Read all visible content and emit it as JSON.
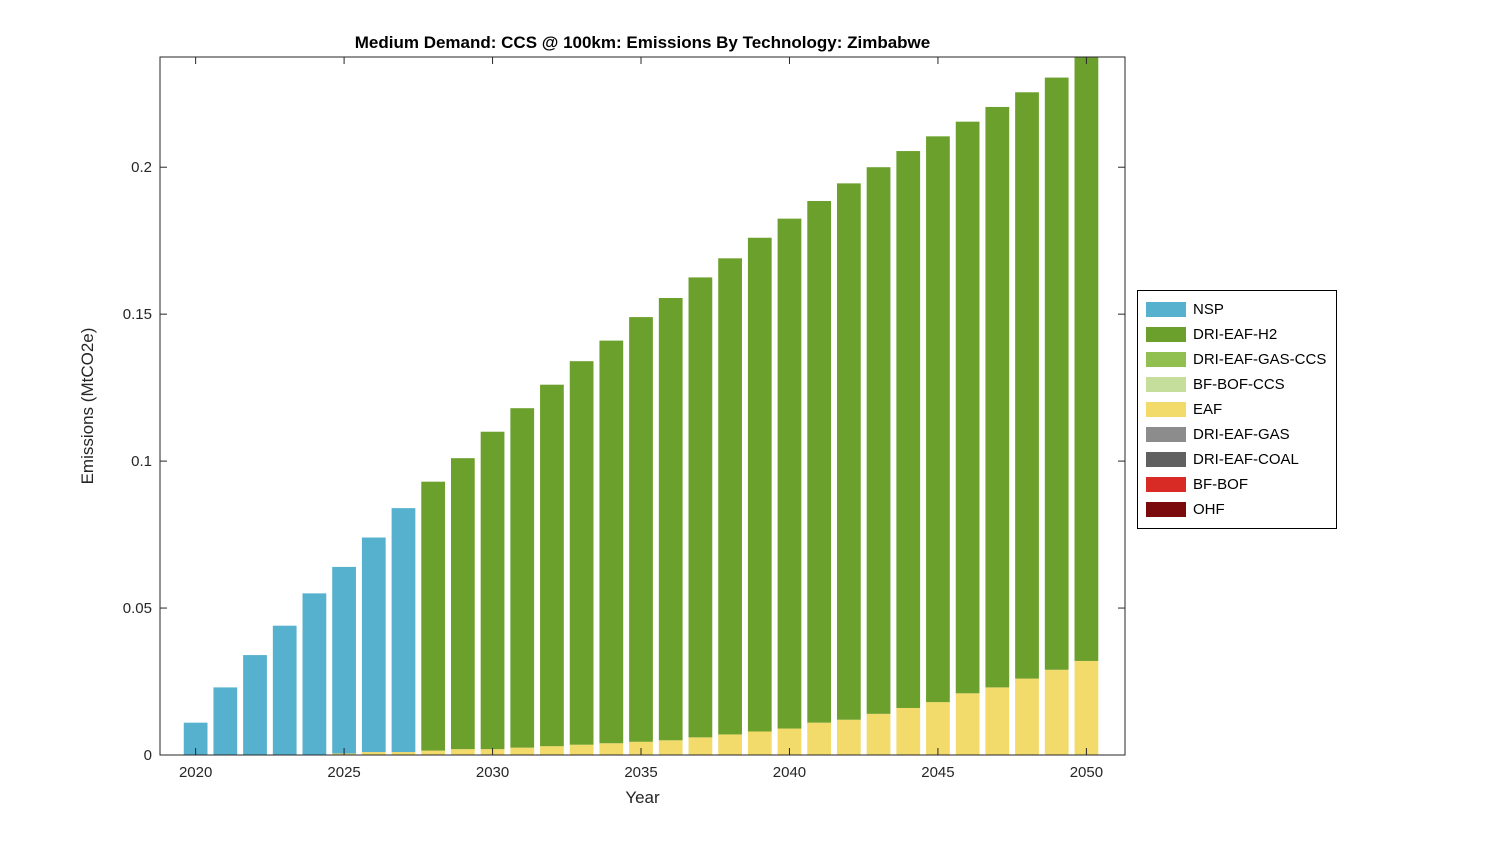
{
  "chart_data": {
    "type": "bar",
    "stacked": true,
    "title": "Medium Demand: CCS @ 100km: Emissions By Technology: Zimbabwe",
    "xlabel": "Year",
    "ylabel": "Emissions (MtCO2e)",
    "x": [
      2020,
      2021,
      2022,
      2023,
      2024,
      2025,
      2026,
      2027,
      2028,
      2029,
      2030,
      2031,
      2032,
      2033,
      2034,
      2035,
      2036,
      2037,
      2038,
      2039,
      2040,
      2041,
      2042,
      2043,
      2044,
      2045,
      2046,
      2047,
      2048,
      2049,
      2050
    ],
    "xlim": [
      2018.8,
      2051.3
    ],
    "ylim": [
      0,
      0.2375
    ],
    "xticks": [
      2020,
      2025,
      2030,
      2035,
      2040,
      2045,
      2050
    ],
    "yticks": [
      0,
      0.05,
      0.1,
      0.15,
      0.2
    ],
    "bar_width": 0.8,
    "grid": false,
    "legend_position": "right-outside",
    "axis_color": "#262626",
    "legend": [
      {
        "label": "NSP",
        "color": "#56B1CE"
      },
      {
        "label": "DRI-EAF-H2",
        "color": "#6CA02C"
      },
      {
        "label": "DRI-EAF-GAS-CCS",
        "color": "#92C050"
      },
      {
        "label": "BF-BOF-CCS",
        "color": "#C6DE9B"
      },
      {
        "label": "EAF",
        "color": "#F2DA6B"
      },
      {
        "label": "DRI-EAF-GAS",
        "color": "#8C8C8C"
      },
      {
        "label": "DRI-EAF-COAL",
        "color": "#606060"
      },
      {
        "label": "BF-BOF",
        "color": "#D92B26"
      },
      {
        "label": "OHF",
        "color": "#7A0A0C"
      }
    ],
    "stack_order": [
      "EAF",
      "DRI-EAF-H2",
      "NSP"
    ],
    "series": [
      {
        "name": "EAF",
        "color": "#F2DA6B",
        "values": [
          0,
          0,
          0,
          0,
          0,
          0.0005,
          0.001,
          0.001,
          0.0015,
          0.002,
          0.002,
          0.0025,
          0.003,
          0.0035,
          0.004,
          0.0045,
          0.005,
          0.006,
          0.007,
          0.008,
          0.009,
          0.011,
          0.012,
          0.014,
          0.016,
          0.018,
          0.021,
          0.023,
          0.026,
          0.029,
          0.032
        ]
      },
      {
        "name": "DRI-EAF-H2",
        "color": "#6CA02C",
        "values": [
          0,
          0,
          0,
          0,
          0,
          0,
          0,
          0,
          0.0915,
          0.099,
          0.108,
          0.1155,
          0.123,
          0.1305,
          0.137,
          0.1445,
          0.1505,
          0.1565,
          0.162,
          0.168,
          0.1735,
          0.1775,
          0.1825,
          0.186,
          0.1895,
          0.1925,
          0.1945,
          0.1975,
          0.1995,
          0.2015,
          0.206
        ]
      },
      {
        "name": "NSP",
        "color": "#56B1CE",
        "values": [
          0.011,
          0.023,
          0.034,
          0.044,
          0.055,
          0.0635,
          0.073,
          0.083,
          0,
          0,
          0,
          0,
          0,
          0,
          0,
          0,
          0,
          0,
          0,
          0,
          0,
          0,
          0,
          0,
          0,
          0,
          0,
          0,
          0,
          0,
          0
        ]
      }
    ]
  }
}
